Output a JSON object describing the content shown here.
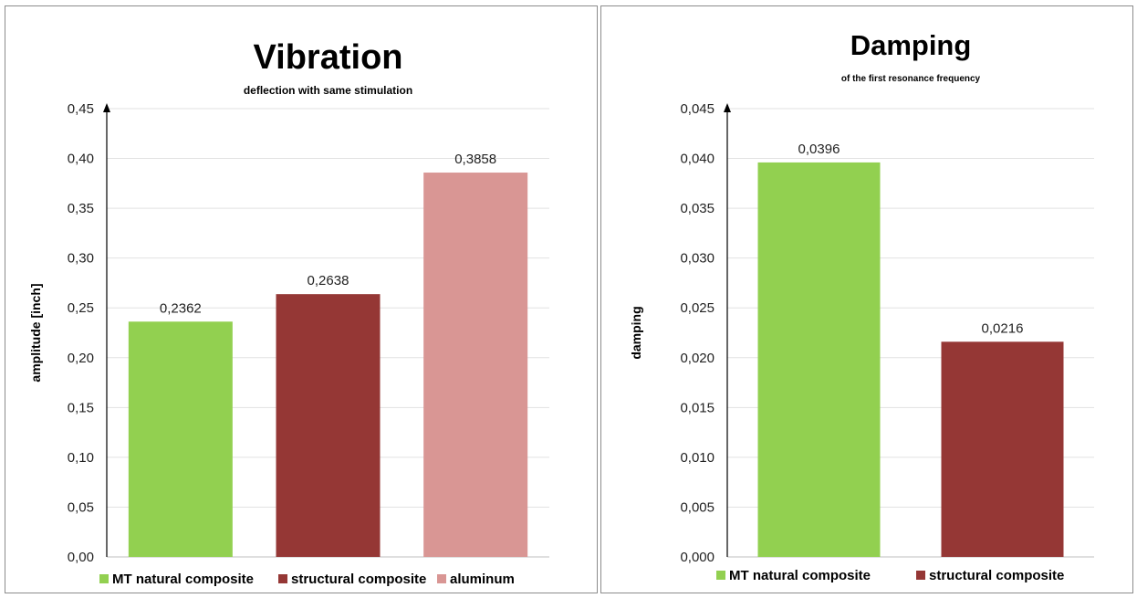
{
  "chart_data": [
    {
      "type": "bar",
      "title": "Vibration",
      "subtitle": "deflection with same stimulation",
      "xlabel": "",
      "ylabel": "amplitude [inch]",
      "ylim": [
        0,
        0.45
      ],
      "ytick_step": 0.05,
      "ytick_decimals": 2,
      "value_decimals": 4,
      "grid": true,
      "legend_position": "bottom",
      "categories": [
        "MT natural composite",
        "structural composite",
        "aluminum"
      ],
      "values": [
        0.2362,
        0.2638,
        0.3858
      ],
      "colors": [
        "#92d050",
        "#953735",
        "#d99694"
      ]
    },
    {
      "type": "bar",
      "title": "Damping",
      "subtitle": "of the first resonance frequency",
      "xlabel": "",
      "ylabel": "damping",
      "ylim": [
        0,
        0.045
      ],
      "ytick_step": 0.005,
      "ytick_decimals": 3,
      "value_decimals": 4,
      "grid": true,
      "legend_position": "bottom",
      "categories": [
        "MT natural composite",
        "structural composite"
      ],
      "values": [
        0.0396,
        0.0216
      ],
      "colors": [
        "#92d050",
        "#953735"
      ]
    }
  ]
}
